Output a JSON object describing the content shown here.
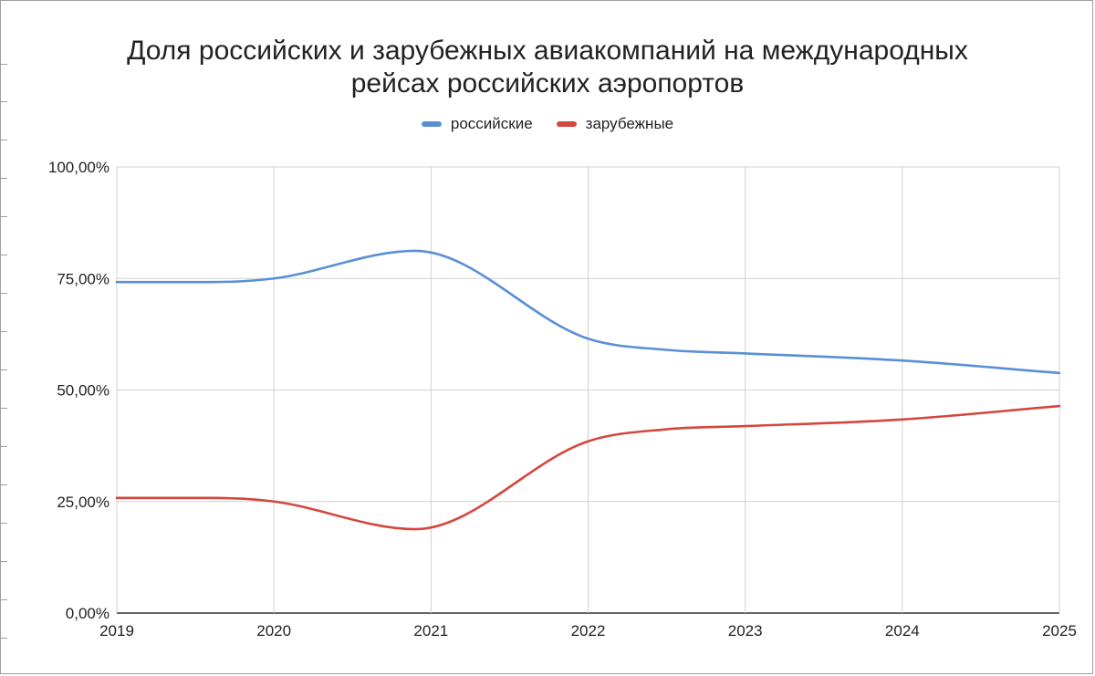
{
  "chart_data": {
    "type": "line",
    "title": [
      "Доля российских и зарубежных авиакомпаний на международных",
      "рейсах российских аэропортов"
    ],
    "x": [
      "2019",
      "2020",
      "2021",
      "2022",
      "2023",
      "2024",
      "2025"
    ],
    "ylim": [
      0,
      100
    ],
    "yticks": [
      0,
      25,
      50,
      75,
      100
    ],
    "ytick_labels": [
      "0,00%",
      "25,00%",
      "50,00%",
      "75,00%",
      "100,00%"
    ],
    "grid": true,
    "legend_position": "top",
    "series": [
      {
        "name": "российские",
        "color": "#5a8fd6",
        "points": [
          [
            2019,
            74.2
          ],
          [
            2019.6,
            74.2
          ],
          [
            2020,
            75.0
          ],
          [
            2020.9,
            81.2
          ],
          [
            2022,
            61.5
          ],
          [
            2022.5,
            59.0
          ],
          [
            2023,
            58.2
          ],
          [
            2024,
            56.6
          ],
          [
            2025,
            53.8
          ]
        ]
      },
      {
        "name": "зарубежные",
        "color": "#d4473d",
        "points": [
          [
            2019,
            25.8
          ],
          [
            2019.6,
            25.8
          ],
          [
            2020,
            25.0
          ],
          [
            2020.9,
            18.8
          ],
          [
            2022,
            38.5
          ],
          [
            2022.5,
            41.2
          ],
          [
            2023,
            41.9
          ],
          [
            2024,
            43.4
          ],
          [
            2025,
            46.4
          ]
        ]
      }
    ]
  }
}
